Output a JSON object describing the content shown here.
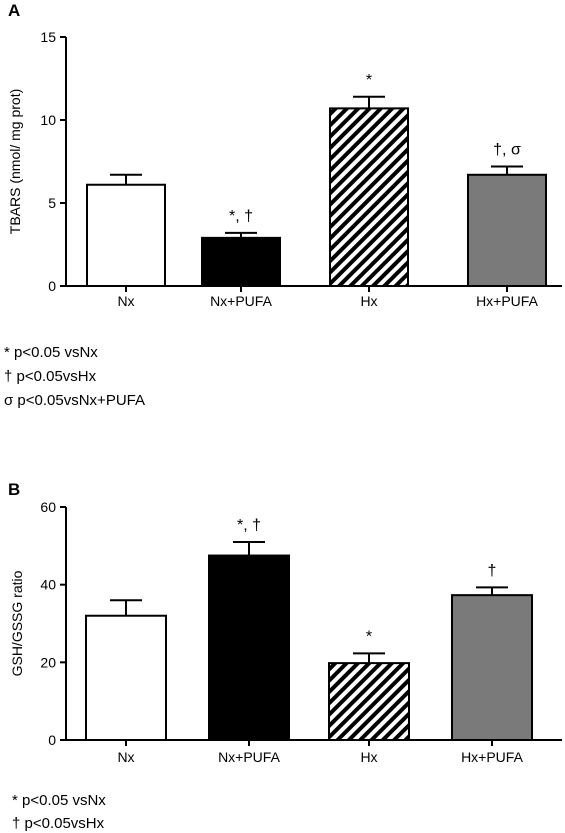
{
  "chart_data": [
    {
      "type": "bar",
      "panel": "A",
      "ylabel": "TBARS (nmol/ mg prot)",
      "ylim": [
        0,
        15
      ],
      "yticks": [
        "0",
        "5",
        "10",
        "15"
      ],
      "categories": [
        "Nx",
        "Nx+PUFA",
        "Hx",
        "Hx+PUFA"
      ],
      "values": [
        6.1,
        2.9,
        10.7,
        6.7
      ],
      "errors": [
        0.6,
        0.3,
        0.7,
        0.5
      ],
      "bar_styles": [
        "white",
        "black",
        "hatched",
        "gray"
      ],
      "significance": [
        "",
        "*, †",
        "*",
        "†, σ"
      ],
      "footnotes": [
        "* p<0.05 vsNx",
        "† p<0.05vsHx",
        "σ p<0.05vsNx+PUFA"
      ]
    },
    {
      "type": "bar",
      "panel": "B",
      "ylabel": "GSH/GSSG ratio",
      "ylim": [
        0,
        60
      ],
      "yticks": [
        "0",
        "20",
        "40",
        "60"
      ],
      "categories": [
        "Nx",
        "Nx+PUFA",
        "Hx",
        "Hx+PUFA"
      ],
      "values": [
        32,
        47.5,
        19.8,
        37.3
      ],
      "errors": [
        4,
        3.5,
        2.5,
        2
      ],
      "bar_styles": [
        "white",
        "black",
        "hatched",
        "gray"
      ],
      "significance": [
        "",
        "*, †",
        "*",
        "†"
      ],
      "footnotes": [
        "* p<0.05 vsNx",
        "† p<0.05vsHx"
      ]
    }
  ],
  "colors": {
    "gray_bar": "#7a7a7a",
    "black_bar": "#000000",
    "white_bar": "#ffffff"
  }
}
